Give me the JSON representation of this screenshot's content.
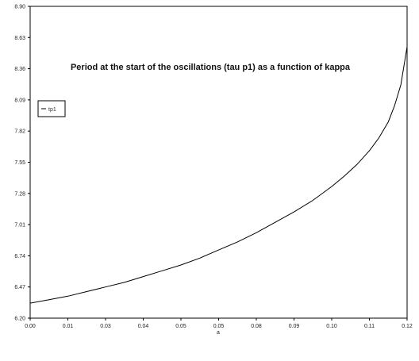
{
  "chart_data": {
    "type": "line",
    "title": "Period at the start of the oscillations  (tau p1) as a function of kappa",
    "xlabel": "a",
    "ylabel": "",
    "x_ticks": [
      "0.00",
      "0.01",
      "0.03",
      "0.04",
      "0.05",
      "0.05",
      "0.08",
      "0.09",
      "0.10",
      "0.11",
      "0.12"
    ],
    "y_ticks": [
      "6.20",
      "6.47",
      "6.74",
      "7.01",
      "7.28",
      "7.55",
      "7.82",
      "8.09",
      "8.36",
      "8.63",
      "8.90"
    ],
    "xlim": [
      0,
      0.12
    ],
    "ylim": [
      6.2,
      8.9
    ],
    "grid": false,
    "legend": {
      "position": "top-left",
      "entries": [
        "tp1"
      ]
    },
    "series": [
      {
        "name": "tp1",
        "color": "#000000",
        "x": [
          0.0,
          0.006,
          0.012,
          0.018,
          0.024,
          0.03,
          0.036,
          0.042,
          0.048,
          0.054,
          0.06,
          0.066,
          0.072,
          0.078,
          0.084,
          0.09,
          0.096,
          0.1,
          0.104,
          0.108,
          0.111,
          0.114,
          0.116,
          0.118,
          0.12
        ],
        "values": [
          6.33,
          6.36,
          6.39,
          6.43,
          6.47,
          6.51,
          6.56,
          6.61,
          6.66,
          6.72,
          6.79,
          6.86,
          6.94,
          7.03,
          7.12,
          7.22,
          7.34,
          7.43,
          7.53,
          7.65,
          7.76,
          7.9,
          8.04,
          8.22,
          8.55
        ]
      }
    ]
  }
}
